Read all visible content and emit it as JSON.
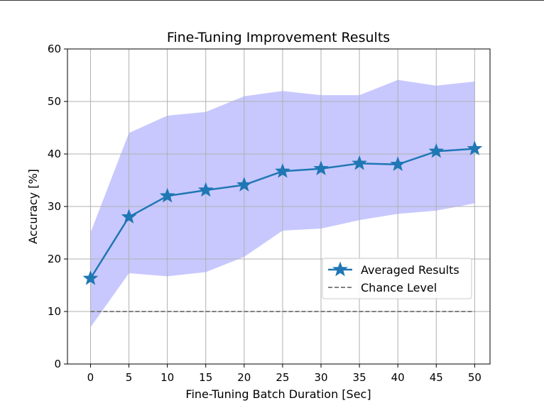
{
  "chart_data": {
    "type": "line",
    "title": "Fine-Tuning Improvement Results",
    "xlabel": "Fine-Tuning Batch Duration [Sec]",
    "ylabel": "Accuracy [%]",
    "xlim": [
      -3,
      52
    ],
    "ylim": [
      0,
      60
    ],
    "x_ticks": [
      0,
      5,
      10,
      15,
      20,
      25,
      30,
      35,
      40,
      45,
      50
    ],
    "y_ticks": [
      0,
      10,
      20,
      30,
      40,
      50,
      60
    ],
    "grid": true,
    "legend_position": "center-right",
    "x": [
      0,
      5,
      10,
      15,
      20,
      25,
      30,
      35,
      40,
      45,
      50
    ],
    "series": [
      {
        "name": "Averaged Results",
        "values": [
          16.3,
          28.0,
          32.0,
          33.1,
          34.1,
          36.7,
          37.2,
          38.2,
          38.0,
          40.5,
          41.0
        ],
        "color": "#1f77b4",
        "marker": "star"
      },
      {
        "name": "Chance Level",
        "values": [
          10,
          10,
          10,
          10,
          10,
          10,
          10,
          10,
          10,
          10,
          10
        ],
        "color": "#808080",
        "linestyle": "dashed"
      }
    ],
    "band": {
      "upper": [
        25.0,
        44.0,
        47.3,
        48.0,
        51.0,
        52.0,
        51.2,
        51.2,
        54.1,
        53.0,
        53.8
      ],
      "lower": [
        7.0,
        17.3,
        16.7,
        17.5,
        20.4,
        25.4,
        25.8,
        27.4,
        28.6,
        29.2,
        30.6
      ],
      "color": "#c8c8ff"
    }
  }
}
